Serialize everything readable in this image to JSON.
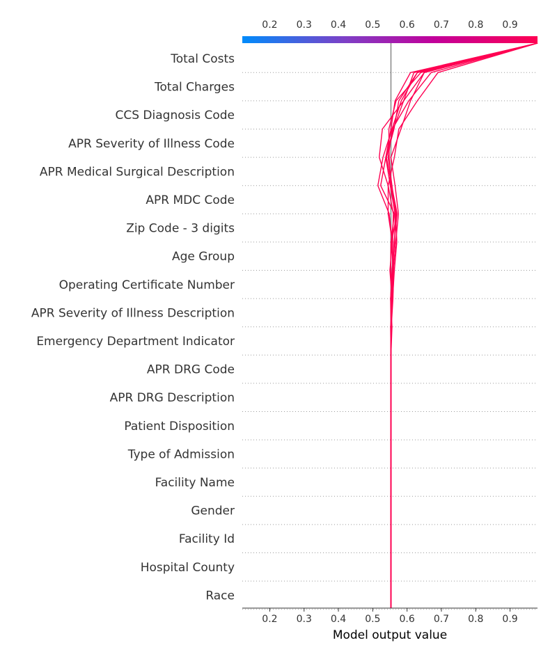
{
  "chart_data": {
    "type": "decision_plot",
    "xlabel": "Model output value",
    "xlim": [
      0.12,
      0.98
    ],
    "x_ticks": [
      "0.2",
      "0.3",
      "0.4",
      "0.5",
      "0.6",
      "0.7",
      "0.8",
      "0.9"
    ],
    "base_value": 0.553,
    "colorbar": {
      "range": [
        0.12,
        0.98
      ],
      "colors": [
        "#008bfb",
        "#7e3fc6",
        "#c2009a",
        "#ff0052"
      ]
    },
    "trace_color": "#ff0052",
    "features": [
      "Total Costs",
      "Total Charges",
      "CCS Diagnosis Code",
      "APR Severity of Illness Code",
      "APR Medical Surgical Description",
      "APR MDC Code",
      "Zip Code - 3 digits",
      "Age Group",
      "Operating Certificate Number",
      "APR Severity of Illness Description",
      "Emergency Department Indicator",
      "APR DRG Code",
      "APR DRG Description",
      "Patient Disposition",
      "Type of Admission",
      "Facility Name",
      "Gender",
      "Facility Id",
      "Hospital County",
      "Race"
    ],
    "series": [
      {
        "values": [
          0.553,
          0.553,
          0.553,
          0.553,
          0.553,
          0.553,
          0.553,
          0.553,
          0.553,
          0.553,
          0.555,
          0.552,
          0.553,
          0.563,
          0.523,
          0.538,
          0.553,
          0.565,
          0.61,
          0.98
        ]
      },
      {
        "values": [
          0.553,
          0.553,
          0.553,
          0.553,
          0.553,
          0.553,
          0.553,
          0.553,
          0.553,
          0.556,
          0.552,
          0.558,
          0.557,
          0.548,
          0.515,
          0.53,
          0.556,
          0.583,
          0.63,
          0.98
        ]
      },
      {
        "values": [
          0.553,
          0.553,
          0.553,
          0.553,
          0.553,
          0.553,
          0.553,
          0.553,
          0.553,
          0.553,
          0.556,
          0.56,
          0.567,
          0.575,
          0.565,
          0.553,
          0.582,
          0.61,
          0.65,
          0.98
        ]
      },
      {
        "values": [
          0.553,
          0.553,
          0.553,
          0.553,
          0.553,
          0.553,
          0.553,
          0.553,
          0.553,
          0.552,
          0.558,
          0.563,
          0.57,
          0.567,
          0.556,
          0.545,
          0.557,
          0.605,
          0.67,
          0.98
        ]
      },
      {
        "values": [
          0.553,
          0.553,
          0.553,
          0.553,
          0.553,
          0.553,
          0.553,
          0.553,
          0.553,
          0.553,
          0.555,
          0.558,
          0.558,
          0.56,
          0.545,
          0.519,
          0.528,
          0.59,
          0.65,
          0.98
        ]
      },
      {
        "values": [
          0.553,
          0.553,
          0.553,
          0.553,
          0.553,
          0.553,
          0.553,
          0.553,
          0.553,
          0.554,
          0.556,
          0.55,
          0.557,
          0.545,
          0.545,
          0.563,
          0.576,
          0.63,
          0.69,
          0.98
        ]
      },
      {
        "values": [
          0.553,
          0.553,
          0.553,
          0.553,
          0.553,
          0.553,
          0.553,
          0.553,
          0.553,
          0.553,
          0.557,
          0.559,
          0.562,
          0.571,
          0.555,
          0.54,
          0.562,
          0.576,
          0.63,
          0.98
        ]
      },
      {
        "values": [
          0.553,
          0.553,
          0.553,
          0.553,
          0.553,
          0.553,
          0.553,
          0.553,
          0.553,
          0.553,
          0.552,
          0.556,
          0.564,
          0.565,
          0.551,
          0.538,
          0.56,
          0.59,
          0.62,
          0.98
        ]
      },
      {
        "values": [
          0.553,
          0.553,
          0.553,
          0.553,
          0.553,
          0.553,
          0.553,
          0.553,
          0.553,
          0.554,
          0.559,
          0.561,
          0.555,
          0.57,
          0.552,
          0.548,
          0.547,
          0.568,
          0.64,
          0.98
        ]
      }
    ]
  }
}
